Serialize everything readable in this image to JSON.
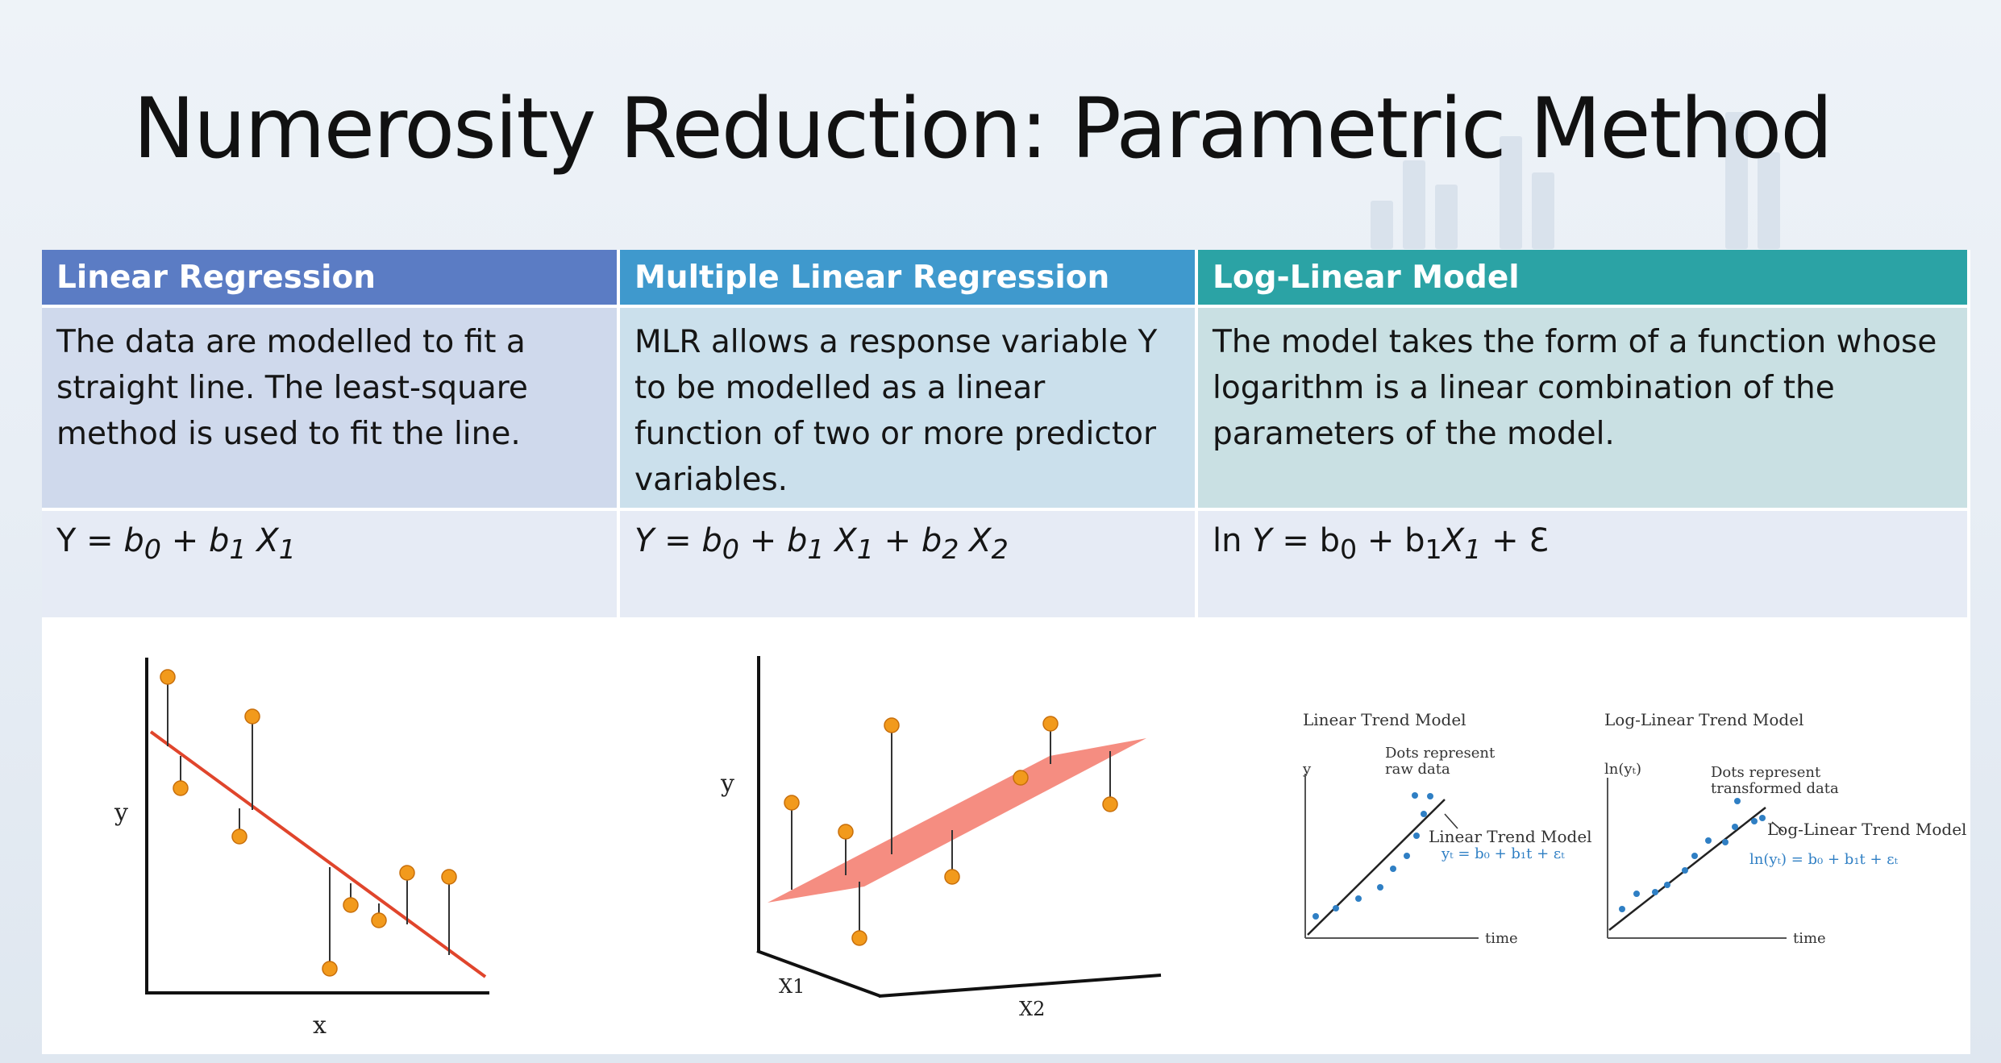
{
  "slide": {
    "title": "Numerosity Reduction: Parametric Method"
  },
  "columns": [
    {
      "header": "Linear Regression",
      "description": "The data are modelled to fit a straight line. The least-square method is used to fit the line.",
      "formula": "Y = b0 + b1 X1"
    },
    {
      "header": "Multiple Linear Regression",
      "description": "MLR allows a response variable Y to be modelled as a linear function of two or more predictor variables.",
      "formula": "Y = b0 + b1 X1 + b2 X2"
    },
    {
      "header": "Log-Linear Model",
      "description": "The model takes the form of a function whose logarithm is a linear combination of the parameters of the model.",
      "formula": "ln Y = b0 + b1X1 + Ɛ"
    }
  ],
  "figures": {
    "linear": {
      "xlabel": "x",
      "ylabel": "y"
    },
    "multiple": {
      "x1label": "X1",
      "x2label": "X2",
      "ylabel": "y"
    },
    "trend_left": {
      "title": "Linear Trend Model",
      "ylabel": "y",
      "xlabel": "time",
      "note_line1": "Dots represent",
      "note_line2": "raw data",
      "model_label": "Linear Trend Model",
      "equation": "yₜ = b₀ + b₁t + εₜ"
    },
    "trend_right": {
      "title": "Log-Linear Trend Model",
      "ylabel": "ln(yₜ)",
      "xlabel": "time",
      "note_line1": "Dots represent",
      "note_line2": "transformed data",
      "model_label": "Log-Linear Trend Model",
      "equation": "ln(yₜ) = b₀ + b₁t + εₜ"
    }
  },
  "colors": {
    "header_1": "#5b7cc4",
    "header_2": "#3f99cd",
    "header_3": "#2ba3a5",
    "dot": "#f29a1c",
    "fit_line": "#e0452c",
    "plane": "#f4877a",
    "trend_dot": "#2f7fc4"
  }
}
